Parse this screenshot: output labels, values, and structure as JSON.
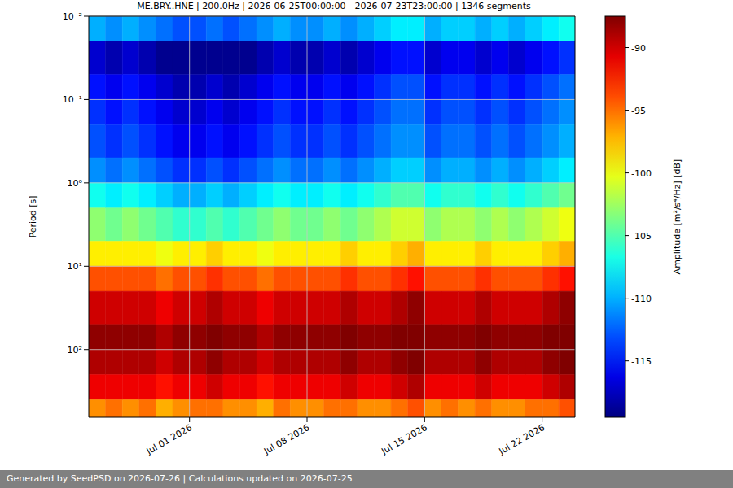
{
  "chart_data": {
    "type": "heatmap",
    "title": "ME.BRY..HNE | 200.0Hz | 2026-06-25T00:00:00 - 2026-07-23T23:00:00 | 1346 segments",
    "footer": "Generated by SeedPSD on 2026-07-26 | Calculations updated on 2026-07-25",
    "y_label": "Period [s]",
    "log": "y",
    "grid": true,
    "xlim": [
      "2026-06-25",
      "2026-07-23T23:00:00"
    ],
    "xticks": [
      {
        "value": "2026-07-01",
        "label": "Jul 01 2026"
      },
      {
        "value": "2026-07-08",
        "label": "Jul 08 2026"
      },
      {
        "value": "2026-07-15",
        "label": "Jul 15 2026"
      },
      {
        "value": "2026-07-22",
        "label": "Jul 22 2026"
      }
    ],
    "ylim": [
      0.01,
      650
    ],
    "yticks": [
      {
        "value": 0.01,
        "label": "10⁻²"
      },
      {
        "value": 0.1,
        "label": "10⁻¹"
      },
      {
        "value": 1,
        "label": "10⁰"
      },
      {
        "value": 10,
        "label": "10¹"
      },
      {
        "value": 100,
        "label": "10²"
      }
    ],
    "cells": {
      "x_edges": [
        "2026-06-25",
        "2026-06-26",
        "2026-06-27",
        "2026-06-28",
        "2026-06-29",
        "2026-06-30",
        "2026-07-01",
        "2026-07-02",
        "2026-07-03",
        "2026-07-04",
        "2026-07-05",
        "2026-07-06",
        "2026-07-07",
        "2026-07-08",
        "2026-07-09",
        "2026-07-10",
        "2026-07-11",
        "2026-07-12",
        "2026-07-13",
        "2026-07-14",
        "2026-07-15",
        "2026-07-16",
        "2026-07-17",
        "2026-07-18",
        "2026-07-19",
        "2026-07-20",
        "2026-07-21",
        "2026-07-22",
        "2026-07-23",
        "2026-07-23T23:00:00"
      ],
      "period_edges": [
        0.01,
        0.02,
        0.05,
        0.1,
        0.2,
        0.5,
        1,
        2,
        5,
        10,
        20,
        50,
        100,
        200,
        400,
        650
      ],
      "values": [
        [
          -110,
          -111,
          -110,
          -111,
          -112,
          -113,
          -113,
          -112,
          -113,
          -112,
          -111,
          -110,
          -111,
          -111,
          -110,
          -111,
          -110,
          -109,
          -108,
          -108,
          -110,
          -109,
          -109,
          -110,
          -109,
          -110,
          -109,
          -108,
          -107
        ],
        [
          -117,
          -118,
          -117,
          -118,
          -119,
          -119,
          -119,
          -119,
          -119,
          -119,
          -118,
          -117,
          -118,
          -118,
          -117,
          -118,
          -117,
          -116,
          -115,
          -115,
          -117,
          -116,
          -116,
          -117,
          -116,
          -117,
          -116,
          -115,
          -114
        ],
        [
          -115,
          -116,
          -115,
          -116,
          -117,
          -118,
          -118,
          -117,
          -118,
          -117,
          -116,
          -115,
          -116,
          -116,
          -115,
          -116,
          -115,
          -114,
          -113,
          -113,
          -115,
          -114,
          -114,
          -115,
          -114,
          -115,
          -114,
          -113,
          -112
        ],
        [
          -114,
          -115,
          -114,
          -115,
          -116,
          -117,
          -117,
          -116,
          -117,
          -116,
          -115,
          -114,
          -115,
          -115,
          -114,
          -115,
          -114,
          -113,
          -112,
          -112,
          -114,
          -113,
          -113,
          -114,
          -113,
          -114,
          -113,
          -112,
          -111
        ],
        [
          -113,
          -114,
          -113,
          -114,
          -115,
          -116,
          -116,
          -115,
          -116,
          -115,
          -114,
          -113,
          -114,
          -114,
          -113,
          -114,
          -113,
          -112,
          -111,
          -111,
          -113,
          -112,
          -112,
          -113,
          -112,
          -113,
          -112,
          -111,
          -110
        ],
        [
          -111,
          -112,
          -111,
          -112,
          -113,
          -114,
          -114,
          -113,
          -114,
          -113,
          -112,
          -111,
          -112,
          -112,
          -111,
          -112,
          -111,
          -110,
          -109,
          -109,
          -111,
          -110,
          -110,
          -111,
          -110,
          -111,
          -110,
          -109,
          -108
        ],
        [
          -107,
          -108,
          -107,
          -108,
          -109,
          -110,
          -110,
          -109,
          -110,
          -109,
          -108,
          -107,
          -108,
          -108,
          -107,
          -108,
          -107,
          -106,
          -105,
          -105,
          -107,
          -106,
          -106,
          -107,
          -106,
          -107,
          -106,
          -105,
          -104
        ],
        [
          -103,
          -104,
          -103,
          -104,
          -105,
          -106,
          -106,
          -105,
          -106,
          -105,
          -104,
          -103,
          -104,
          -104,
          -103,
          -104,
          -103,
          -102,
          -101,
          -101,
          -103,
          -102,
          -102,
          -103,
          -102,
          -103,
          -102,
          -101,
          -100
        ],
        [
          -99,
          -99,
          -99,
          -99,
          -100,
          -99,
          -99,
          -98,
          -99,
          -99,
          -100,
          -99,
          -99,
          -99,
          -99,
          -98,
          -99,
          -99,
          -98,
          -97,
          -99,
          -99,
          -99,
          -98,
          -99,
          -99,
          -99,
          -98,
          -97
        ],
        [
          -94,
          -94,
          -94,
          -94,
          -95,
          -94,
          -94,
          -93,
          -94,
          -94,
          -95,
          -94,
          -94,
          -94,
          -94,
          -93,
          -94,
          -94,
          -93,
          -92,
          -94,
          -94,
          -94,
          -93,
          -94,
          -94,
          -94,
          -93,
          -92
        ],
        [
          -90,
          -90,
          -90,
          -90,
          -91,
          -90,
          -90,
          -89,
          -90,
          -90,
          -91,
          -90,
          -90,
          -90,
          -90,
          -89,
          -90,
          -90,
          -89,
          -88,
          -90,
          -90,
          -90,
          -89,
          -90,
          -90,
          -90,
          -89,
          -88
        ],
        [
          -88,
          -88,
          -88,
          -88,
          -89,
          -88,
          -88,
          -87,
          -88,
          -88,
          -89,
          -88,
          -88,
          -88,
          -88,
          -87,
          -88,
          -88,
          -87,
          -87,
          -88,
          -88,
          -88,
          -87,
          -88,
          -88,
          -88,
          -87,
          -87
        ],
        [
          -89,
          -89,
          -89,
          -89,
          -90,
          -89,
          -89,
          -88,
          -89,
          -89,
          -90,
          -89,
          -89,
          -89,
          -89,
          -88,
          -89,
          -89,
          -88,
          -87,
          -89,
          -89,
          -89,
          -88,
          -89,
          -89,
          -89,
          -88,
          -87
        ],
        [
          -91,
          -91,
          -91,
          -91,
          -92,
          -91,
          -91,
          -90,
          -91,
          -91,
          -92,
          -91,
          -91,
          -91,
          -91,
          -90,
          -91,
          -91,
          -90,
          -89,
          -91,
          -91,
          -91,
          -90,
          -91,
          -91,
          -91,
          -90,
          -89
        ],
        [
          -96,
          -95,
          -96,
          -95,
          -97,
          -96,
          -95,
          -95,
          -96,
          -96,
          -97,
          -95,
          -96,
          -96,
          -95,
          -95,
          -96,
          -96,
          -95,
          -94,
          -96,
          -95,
          -96,
          -95,
          -96,
          -96,
          -95,
          -95,
          -94
        ]
      ]
    },
    "colorbar": {
      "label": "Amplitude [m²/s⁴/Hz] [dB]",
      "range": [
        -119.5,
        -87.5
      ],
      "ticks": [
        -115,
        -110,
        -105,
        -100,
        -95,
        -90
      ]
    }
  }
}
